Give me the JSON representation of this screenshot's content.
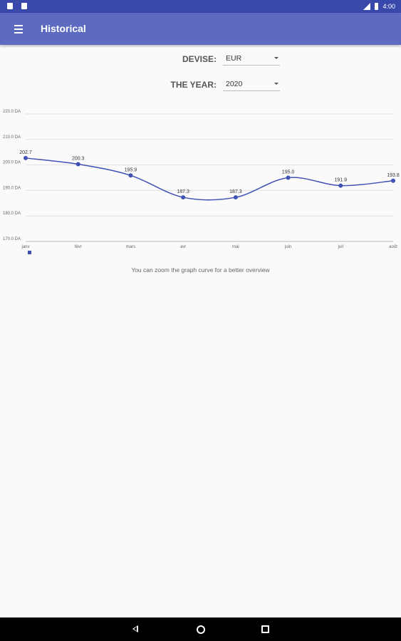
{
  "status_bar": {
    "time": "4:00"
  },
  "app_bar": {
    "title": "Historical"
  },
  "form": {
    "devise_label": "DEVISE:",
    "devise_value": "EUR",
    "year_label": "THE YEAR:",
    "year_value": "2020"
  },
  "colors": {
    "status_bar": "#3949ab",
    "app_bar": "#5c6bc0",
    "series_line": "#3f51b5",
    "background": "#fafafa"
  },
  "chart_data": {
    "type": "line",
    "categories": [
      "janv",
      "févr",
      "mars",
      "avr",
      "mai",
      "juin",
      "juil",
      "août"
    ],
    "series": [
      {
        "values": [
          202.7,
          200.3,
          195.9,
          187.3,
          187.3,
          195.0,
          191.9,
          193.8
        ],
        "data_labels": [
          "202.7",
          "200.3",
          "195.9",
          "187.3",
          "187.3",
          "195.0",
          "191.9",
          "193.8"
        ]
      }
    ],
    "y_ticks": [
      170,
      180,
      190,
      200,
      210,
      220
    ],
    "y_tick_labels": [
      "170.0 DA",
      "180.0 DA",
      "190.0 DA",
      "200.0 DA",
      "210.0 DA",
      "220.0 DA"
    ],
    "ylim": [
      170,
      220
    ],
    "grid": true,
    "legend": "bottom-left",
    "smooth": true
  },
  "hint_text": "You can zoom the graph curve for a better overview",
  "nav_bar": {
    "back_icon": "back-triangle-icon",
    "home_icon": "home-circle-icon",
    "recent_icon": "recents-square-icon"
  }
}
